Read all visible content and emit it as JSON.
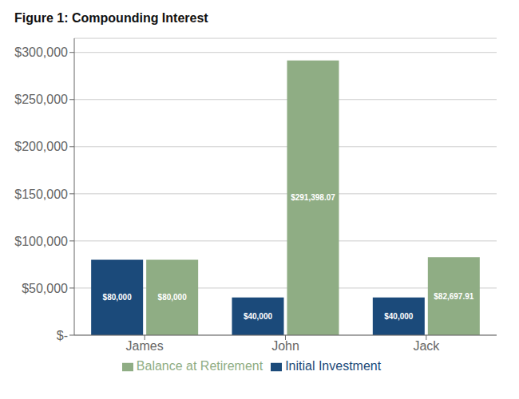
{
  "chart_data": {
    "type": "bar",
    "title": "Figure 1: Compounding Interest",
    "categories": [
      "James",
      "John",
      "Jack"
    ],
    "series": [
      {
        "name": "Initial Investment",
        "color": "#1b4a7a",
        "values": [
          80000,
          40000,
          40000
        ],
        "value_labels": [
          "$80,000",
          "$40,000",
          "$40,000"
        ]
      },
      {
        "name": "Balance at Retirement",
        "color": "#8fad84",
        "values": [
          80000,
          291398.07,
          82697.91
        ],
        "value_labels": [
          "$80,000",
          "$291,398.07",
          "$82,697.91"
        ]
      }
    ],
    "ylim": [
      0,
      315000
    ],
    "yticks": [
      {
        "value": 0,
        "label": "$-"
      },
      {
        "value": 50000,
        "label": "$50,000"
      },
      {
        "value": 100000,
        "label": "$100,000"
      },
      {
        "value": 150000,
        "label": "$150,000"
      },
      {
        "value": 200000,
        "label": "$200,000"
      },
      {
        "value": 250000,
        "label": "$250,000"
      },
      {
        "value": 300000,
        "label": "$300,000"
      }
    ],
    "grid": true,
    "legend": "bottom",
    "data_labels": true
  }
}
